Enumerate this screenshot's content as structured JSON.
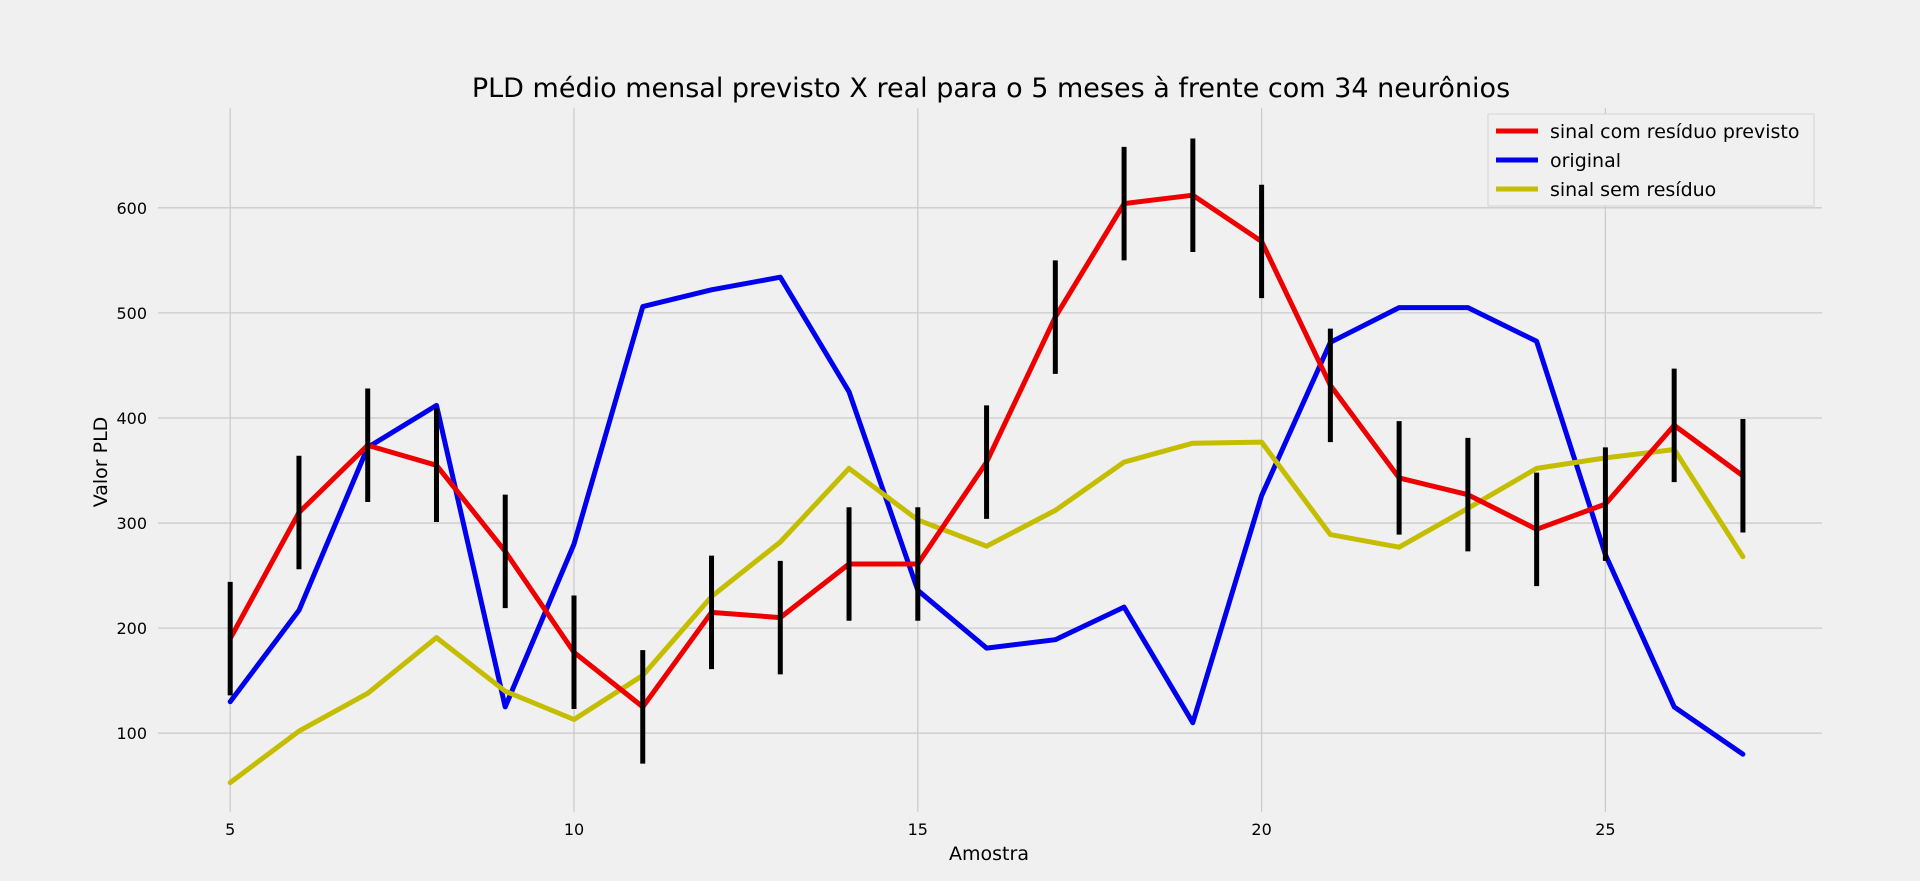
{
  "chart_data": {
    "type": "line",
    "title": "PLD médio mensal previsto X real para o 5 meses à frente com 34 neurônios",
    "xlabel": "Amostra",
    "ylabel": "Valor PLD",
    "xlim": [
      3.95,
      28.15
    ],
    "ylim": [
      25,
      695
    ],
    "xticks": [
      5,
      10,
      15,
      20,
      25
    ],
    "yticks": [
      100,
      200,
      300,
      400,
      500,
      600
    ],
    "grid": true,
    "legend_position": "top-right",
    "x": [
      5,
      6,
      7,
      8,
      9,
      10,
      11,
      12,
      13,
      14,
      15,
      16,
      17,
      18,
      19,
      20,
      21,
      22,
      23,
      24,
      25,
      26,
      27
    ],
    "series": [
      {
        "name": "original",
        "color": "#0000ee",
        "values": [
          130,
          217,
          372,
          412,
          125,
          280,
          506,
          522,
          534,
          425,
          236,
          181,
          189,
          220,
          110,
          326,
          472,
          505,
          505,
          473,
          270,
          125,
          80
        ]
      },
      {
        "name": "sinal sem resíduo",
        "color": "#c4bd00",
        "values": [
          53,
          102,
          138,
          191,
          140,
          113,
          155,
          230,
          282,
          352,
          303,
          278,
          312,
          358,
          376,
          377,
          289,
          277,
          314,
          352,
          362,
          370,
          268
        ]
      },
      {
        "name": "sinal com resíduo previsto",
        "color": "#ee0000",
        "values": [
          190,
          310,
          374,
          355,
          273,
          177,
          125,
          215,
          210,
          261,
          261,
          358,
          496,
          604,
          612,
          568,
          431,
          343,
          327,
          294,
          318,
          393,
          345
        ],
        "error": [
          54,
          54,
          54,
          54,
          54,
          54,
          54,
          54,
          54,
          54,
          54,
          54,
          54,
          54,
          54,
          54,
          54,
          54,
          54,
          54,
          54,
          54,
          54
        ]
      }
    ],
    "legend": [
      "sinal com resíduo previsto",
      "original",
      "sinal sem resíduo"
    ],
    "errorbar_color": "#000000"
  }
}
